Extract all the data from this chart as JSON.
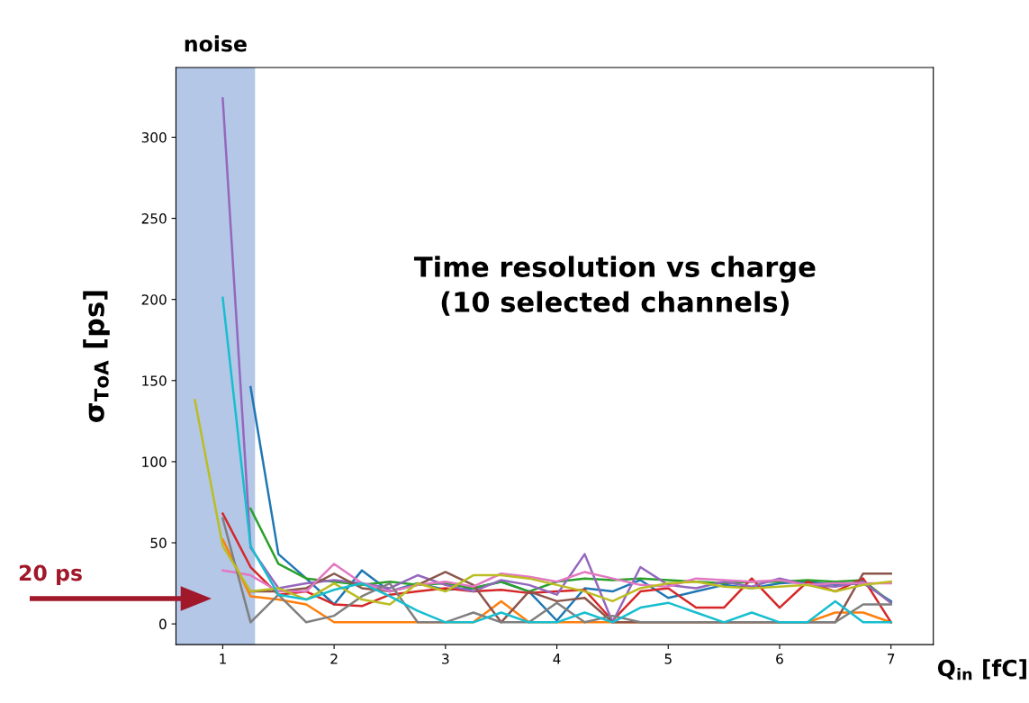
{
  "chart_data": {
    "type": "line",
    "title": "Time resolution vs charge\n(10 selected channels)",
    "xlabel": "Q$_{in}$ [fC]",
    "ylabel": "σ$_{ToA}$ [ps]",
    "x": [
      0.75,
      1.0,
      1.25,
      1.5,
      1.75,
      2.0,
      2.25,
      2.5,
      2.75,
      3.0,
      3.25,
      3.5,
      3.75,
      4.0,
      4.25,
      4.5,
      4.75,
      5.0,
      5.25,
      5.5,
      5.75,
      6.0,
      6.25,
      6.5,
      6.75,
      7.0
    ],
    "series": [
      {
        "color": "#1f77b4",
        "values": [
          null,
          null,
          146,
          43,
          28,
          12,
          33,
          20,
          25,
          21,
          22,
          26,
          20,
          2,
          22,
          20,
          27,
          16,
          20,
          24,
          22,
          25,
          26,
          24,
          25,
          14
        ]
      },
      {
        "color": "#ff7f0e",
        "values": [
          null,
          52,
          17,
          15,
          12,
          1,
          1,
          1,
          1,
          1,
          1,
          14,
          1,
          1,
          1,
          1,
          1,
          1,
          1,
          1,
          1,
          1,
          1,
          7,
          7,
          1
        ]
      },
      {
        "color": "#2ca02c",
        "values": [
          null,
          null,
          71,
          37,
          28,
          26,
          24,
          26,
          24,
          25,
          22,
          26,
          20,
          26,
          28,
          27,
          28,
          27,
          26,
          25,
          26,
          26,
          27,
          26,
          27,
          13
        ]
      },
      {
        "color": "#d62728",
        "values": [
          null,
          68,
          35,
          18,
          20,
          12,
          11,
          18,
          20,
          22,
          20,
          21,
          19,
          20,
          21,
          2,
          20,
          22,
          10,
          10,
          28,
          10,
          26,
          20,
          28,
          1
        ]
      },
      {
        "color": "#9467bd",
        "values": [
          null,
          324,
          47,
          22,
          25,
          27,
          25,
          22,
          30,
          24,
          20,
          27,
          24,
          18,
          43,
          1,
          35,
          24,
          22,
          26,
          23,
          28,
          24,
          23,
          26,
          13
        ]
      },
      {
        "color": "#8c564b",
        "values": [
          null,
          null,
          20,
          20,
          22,
          31,
          22,
          20,
          24,
          32,
          24,
          1,
          20,
          14,
          16,
          1,
          1,
          1,
          1,
          1,
          1,
          1,
          1,
          1,
          31,
          31
        ]
      },
      {
        "color": "#e377c2",
        "values": [
          null,
          33,
          30,
          20,
          20,
          37,
          25,
          20,
          24,
          26,
          23,
          31,
          29,
          26,
          32,
          28,
          24,
          23,
          28,
          27,
          26,
          27,
          24,
          25,
          25,
          25
        ]
      },
      {
        "color": "#7f7f7f",
        "values": [
          null,
          65,
          1,
          18,
          1,
          5,
          17,
          25,
          1,
          1,
          7,
          1,
          1,
          13,
          1,
          5,
          1,
          1,
          1,
          1,
          1,
          1,
          1,
          1,
          12,
          12
        ]
      },
      {
        "color": "#bcbd22",
        "values": [
          138,
          48,
          20,
          22,
          15,
          25,
          15,
          12,
          25,
          20,
          30,
          30,
          28,
          24,
          20,
          14,
          22,
          25,
          26,
          23,
          22,
          23,
          24,
          20,
          24,
          26
        ]
      },
      {
        "color": "#17becf",
        "values": [
          null,
          201,
          48,
          18,
          15,
          21,
          25,
          17,
          8,
          1,
          1,
          7,
          1,
          1,
          7,
          1,
          10,
          13,
          7,
          1,
          7,
          1,
          1,
          14,
          1,
          1
        ]
      }
    ],
    "xlim": [
      0.58,
      7.38
    ],
    "ylim": [
      -12.8,
      343
    ],
    "xticks": [
      1,
      2,
      3,
      4,
      5,
      6,
      7
    ],
    "yticks": [
      0,
      50,
      100,
      150,
      200,
      250,
      300
    ],
    "bands": [
      {
        "axis": "x",
        "from": 0.58,
        "to": 1.29,
        "label": "noise",
        "color": "#b4c7e7"
      }
    ],
    "annotations": [
      "20 ps"
    ],
    "grid": false,
    "legend": false,
    "marker": "none",
    "line_style": "solid"
  }
}
